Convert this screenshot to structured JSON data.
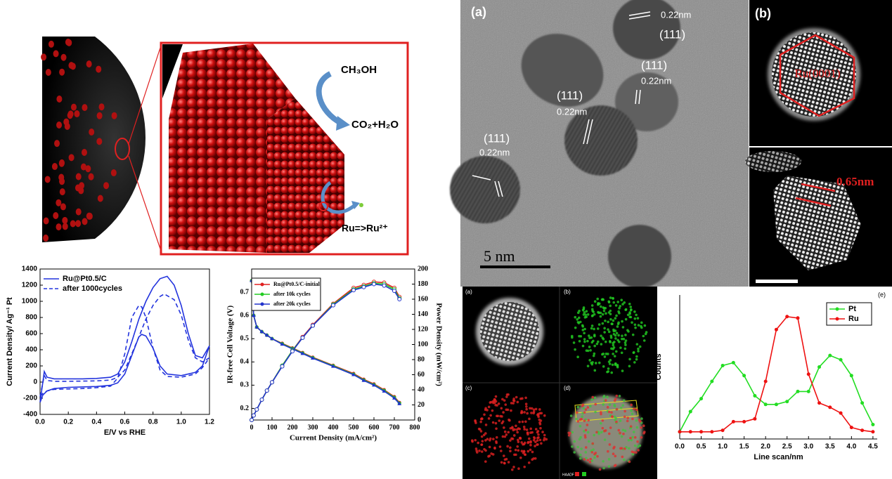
{
  "schematic": {
    "reactant": "CH₃OH",
    "product": "CO₂+H₂O",
    "dissolution": "Ru=>Ru²⁺"
  },
  "tem": {
    "panel": "(a)",
    "scale_bar": "5 nm",
    "annotations": [
      {
        "plane": "(111)",
        "spacing": "0.22nm"
      },
      {
        "plane": "(111)",
        "spacing": "0.22nm"
      },
      {
        "plane": "(111)",
        "spacing": "0.22nm"
      },
      {
        "plane": "(111)",
        "spacing": "0.22nm"
      }
    ]
  },
  "stem": {
    "panel": "(b)",
    "facet": "Ru(0001)",
    "spacing": "0.65nm"
  },
  "eds": {
    "panels": [
      "(a)",
      "(b)",
      "(c)",
      "(d)"
    ],
    "channel": "HAADF"
  },
  "chart_data": [
    {
      "type": "line",
      "y_label": "Current Density/ Ag⁻¹ Pt",
      "x_label": "E/V vs RHE",
      "xlim": [
        0,
        1.2
      ],
      "ylim": [
        -400,
        1400
      ],
      "xticks": [
        {
          "value": 0,
          "label": "0.0"
        },
        0.2,
        0.4,
        0.6,
        0.8,
        {
          "value": 1,
          "label": "1.0"
        },
        1.2
      ],
      "yticks": [
        -400,
        -200,
        0,
        200,
        400,
        600,
        800,
        1000,
        1200,
        1400
      ],
      "series": [
        {
          "name": "Ru@Pt0.5/C",
          "color": "#2233dd",
          "dash": false,
          "x": [
            0,
            0.03,
            0.05,
            0.1,
            0.2,
            0.3,
            0.4,
            0.5,
            0.55,
            0.6,
            0.65,
            0.7,
            0.75,
            0.8,
            0.85,
            0.9,
            0.95,
            1.0,
            1.05,
            1.1,
            1.15,
            1.2,
            1.15,
            1.1,
            1.0,
            0.9,
            0.85,
            0.8,
            0.75,
            0.72,
            0.7,
            0.65,
            0.6,
            0.55,
            0.5,
            0.4,
            0.3,
            0.2,
            0.1,
            0.05,
            0.02,
            0
          ],
          "values": [
            -250,
            130,
            60,
            40,
            40,
            40,
            45,
            60,
            100,
            250,
            500,
            780,
            1000,
            1170,
            1280,
            1310,
            1200,
            950,
            600,
            330,
            300,
            450,
            200,
            120,
            80,
            100,
            200,
            420,
            570,
            590,
            560,
            330,
            100,
            -10,
            -40,
            -55,
            -60,
            -65,
            -80,
            -110,
            -160,
            -250
          ]
        },
        {
          "name": "after 1000cycles",
          "color": "#2233dd",
          "dash": true,
          "x": [
            0,
            0.03,
            0.05,
            0.1,
            0.2,
            0.3,
            0.4,
            0.5,
            0.55,
            0.6,
            0.65,
            0.7,
            0.75,
            0.8,
            0.85,
            0.88,
            0.95,
            1.0,
            1.05,
            1.1,
            1.15,
            1.2,
            1.15,
            1.1,
            1.0,
            0.9,
            0.85,
            0.8,
            0.75,
            0.72,
            0.7,
            0.65,
            0.6,
            0.55,
            0.5,
            0.4,
            0.3,
            0.2,
            0.1,
            0.05,
            0.02,
            0
          ],
          "values": [
            -180,
            80,
            20,
            10,
            10,
            12,
            15,
            25,
            60,
            150,
            350,
            560,
            780,
            950,
            1060,
            1090,
            1020,
            830,
            520,
            300,
            250,
            300,
            180,
            100,
            60,
            70,
            150,
            420,
            800,
            930,
            950,
            800,
            350,
            50,
            -50,
            -70,
            -80,
            -85,
            -90,
            -110,
            -140,
            -180
          ]
        }
      ]
    },
    {
      "type": "line",
      "y_label": "IR-free Cell Voltage (V)",
      "y2_label": "Power Density (mW/cm²)",
      "x_label": "Current Density (mA/cm²)",
      "xlim": [
        0,
        800
      ],
      "ylim": [
        0.15,
        0.8
      ],
      "y2lim": [
        0,
        200
      ],
      "xticks": [
        0,
        100,
        200,
        300,
        400,
        500,
        600,
        700,
        800
      ],
      "yticks": [
        0.2,
        0.3,
        0.4,
        0.5,
        0.6,
        0.7
      ],
      "y2ticks": [
        0,
        20,
        40,
        60,
        80,
        100,
        120,
        140,
        160,
        180,
        200
      ],
      "x": [
        0,
        10,
        25,
        50,
        75,
        100,
        150,
        200,
        250,
        300,
        400,
        500,
        550,
        600,
        650,
        700,
        725
      ],
      "series": [
        {
          "name": "Ru@Pt0.5/C-initial",
          "color": "#e02020",
          "values": [
            0.75,
            0.6,
            0.55,
            0.53,
            0.515,
            0.5,
            0.48,
            0.46,
            0.44,
            0.42,
            0.385,
            0.35,
            0.325,
            0.305,
            0.28,
            0.25,
            0.225
          ]
        },
        {
          "name": "after 10k cycles",
          "color": "#22cc22",
          "values": [
            0.75,
            0.6,
            0.55,
            0.53,
            0.515,
            0.5,
            0.478,
            0.458,
            0.438,
            0.418,
            0.383,
            0.347,
            0.322,
            0.302,
            0.277,
            0.247,
            0.222
          ]
        },
        {
          "name": "after 20k cycles",
          "color": "#2233cc",
          "values": [
            0.75,
            0.6,
            0.55,
            0.53,
            0.515,
            0.5,
            0.476,
            0.456,
            0.436,
            0.416,
            0.381,
            0.345,
            0.32,
            0.3,
            0.274,
            0.244,
            0.22
          ]
        },
        {
          "color": "#e02020",
          "axis": "y2",
          "values": [
            0,
            6,
            14,
            27,
            39,
            50,
            72,
            92,
            110,
            126,
            154,
            175,
            179,
            183,
            182,
            175,
            163
          ]
        },
        {
          "color": "#22cc22",
          "axis": "y2",
          "values": [
            0,
            6,
            14,
            27,
            39,
            50,
            72,
            92,
            109,
            125,
            153,
            173,
            177,
            181,
            180,
            173,
            161
          ]
        },
        {
          "color": "#2233cc",
          "axis": "y2",
          "values": [
            0,
            6,
            14,
            27,
            39,
            50,
            71,
            91,
            109,
            125,
            152,
            172,
            176,
            180,
            178,
            171,
            160
          ]
        }
      ]
    },
    {
      "type": "line",
      "panel": "(e)",
      "y_label": "Counts",
      "x_label": "Line scan/nm",
      "xlim": [
        0,
        4.6
      ],
      "ylim": [
        0,
        100
      ],
      "xticks": [
        {
          "value": 0,
          "label": "0.0"
        },
        0.5,
        {
          "value": 1,
          "label": "1.0"
        },
        1.5,
        {
          "value": 2,
          "label": "2.0"
        },
        2.5,
        {
          "value": 3,
          "label": "3.0"
        },
        3.5,
        {
          "value": 4,
          "label": "4.0"
        },
        4.5
      ],
      "x": [
        0,
        0.25,
        0.5,
        0.75,
        1,
        1.25,
        1.5,
        1.75,
        2,
        2.25,
        2.5,
        2.75,
        3,
        3.25,
        3.5,
        3.75,
        4,
        4.25,
        4.5
      ],
      "series": [
        {
          "name": "Pt",
          "color": "#22dd22",
          "values": [
            5,
            19,
            28,
            40,
            51,
            53,
            44,
            30,
            24,
            24,
            26,
            33,
            33,
            50,
            58,
            55,
            44,
            25,
            10
          ]
        },
        {
          "name": "Ru",
          "color": "#ee1111",
          "values": [
            5,
            5,
            5,
            5,
            6,
            12,
            12,
            14,
            40,
            76,
            85,
            84,
            45,
            25,
            22,
            18,
            8,
            6,
            5
          ]
        }
      ]
    }
  ]
}
